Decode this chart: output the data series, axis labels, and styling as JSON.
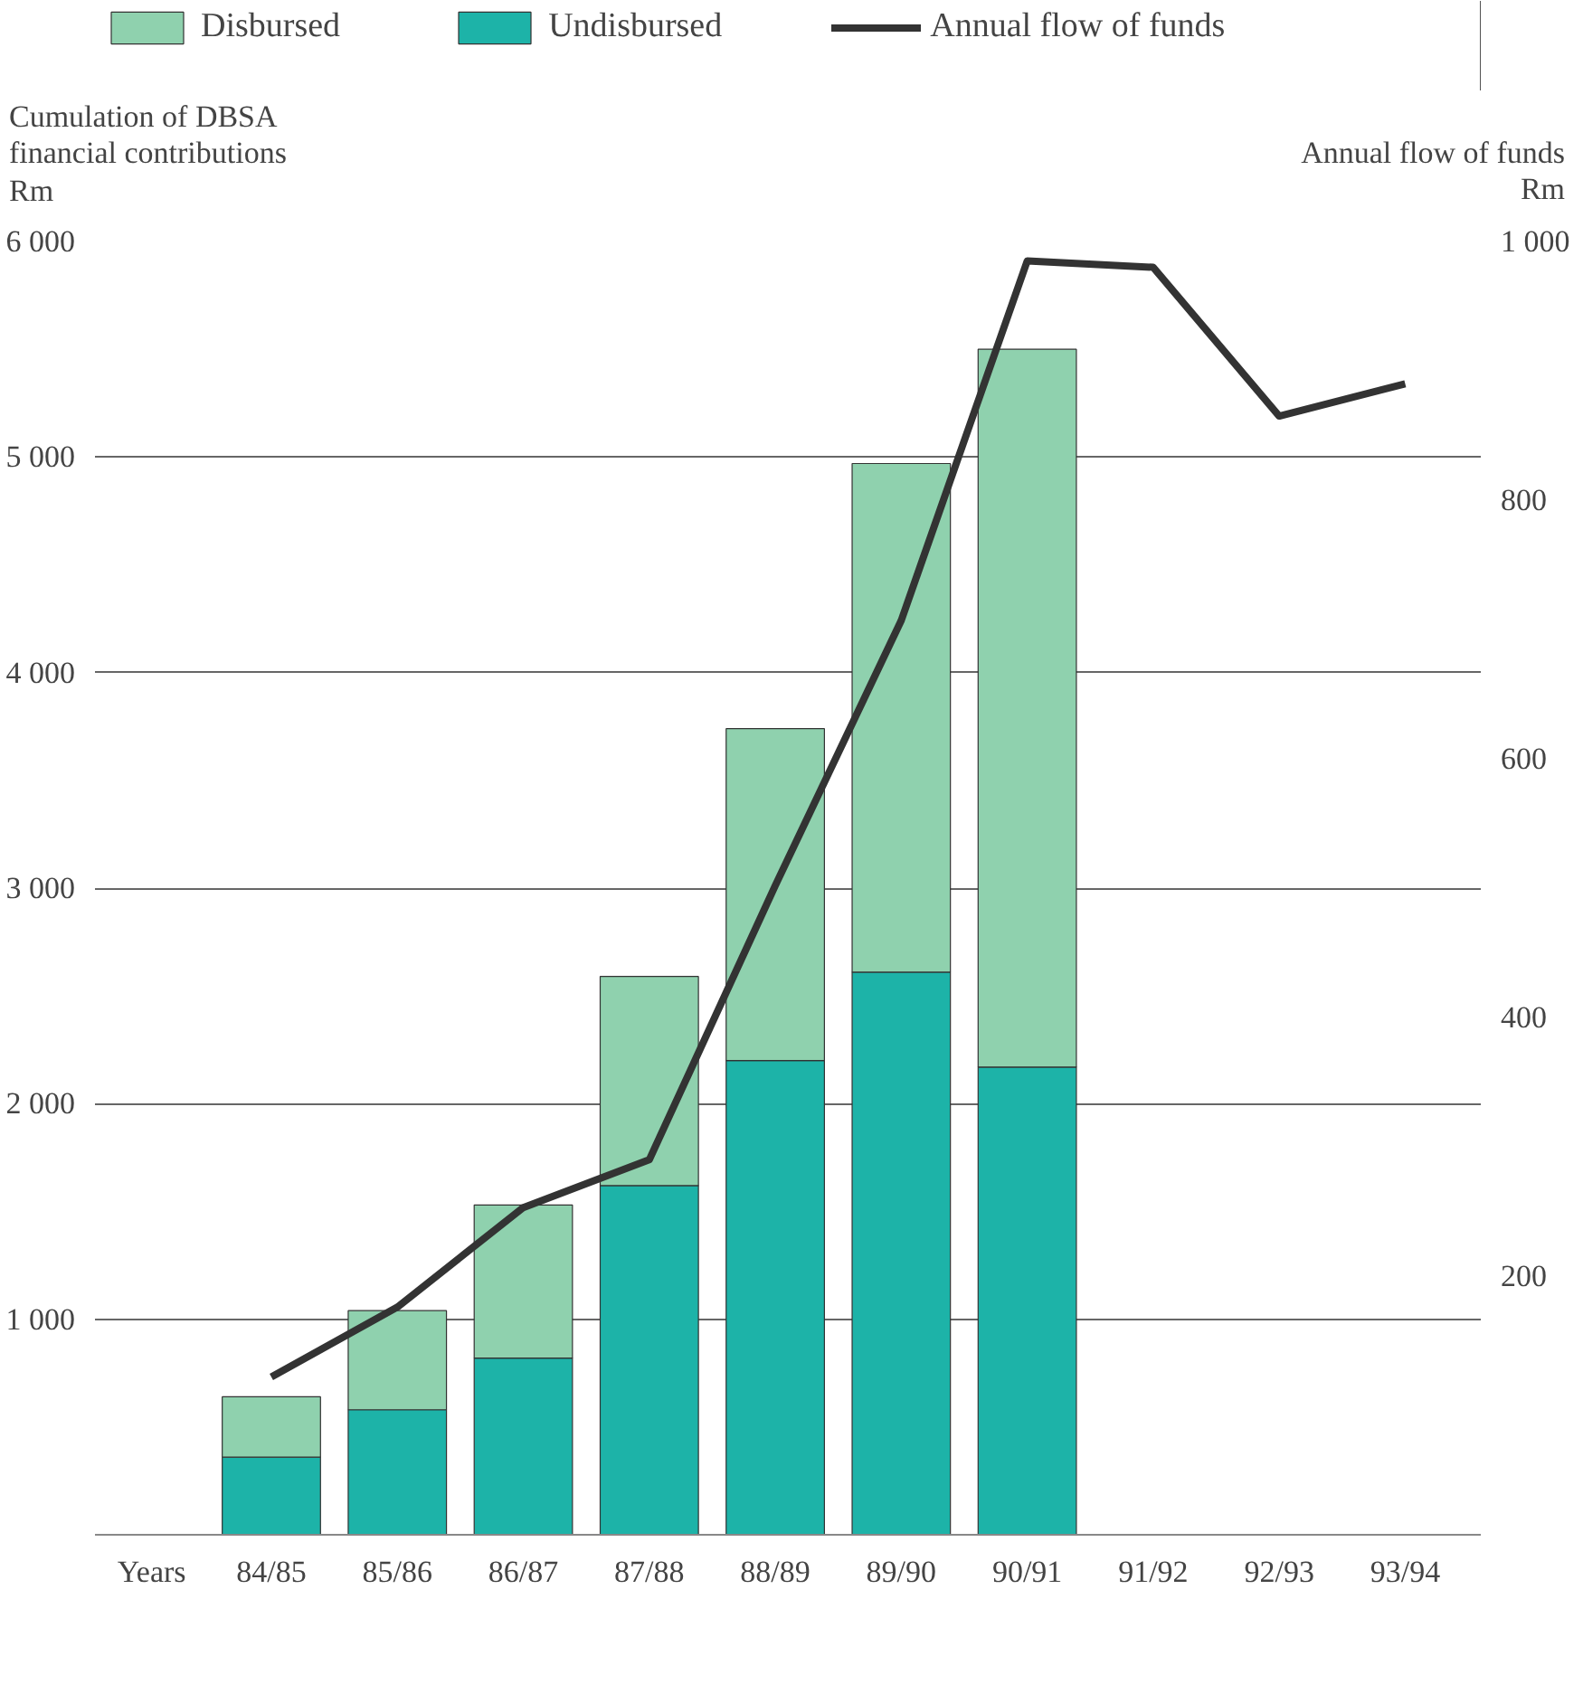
{
  "chart_data": {
    "type": "bar",
    "stacked": true,
    "categories": [
      "84/85",
      "85/86",
      "86/87",
      "87/88",
      "88/89",
      "89/90",
      "90/91",
      "91/92",
      "92/93",
      "93/94"
    ],
    "series": [
      {
        "name": "Undisbursed",
        "color": "#1db3a8",
        "values": [
          360,
          580,
          820,
          1620,
          2200,
          2610,
          2170,
          null,
          null,
          null
        ]
      },
      {
        "name": "Disbursed",
        "color": "#8fd1ae",
        "values": [
          280,
          460,
          710,
          970,
          1540,
          2360,
          3330,
          null,
          null,
          null
        ]
      },
      {
        "name": "Annual flow of funds",
        "type": "line",
        "axis": "y2",
        "color": "#333333",
        "values": [
          122,
          176,
          253,
          290,
          502,
          707,
          985,
          980,
          865,
          890
        ]
      }
    ],
    "xlabel": "Years",
    "ylabel": "Cumulation of DBSA\nfinancial contributions\nRm",
    "y2label": "Annual flow of funds\nRm",
    "ylim": [
      0,
      6000
    ],
    "yticks": [
      {
        "value": 1000,
        "label": "1 000"
      },
      {
        "value": 2000,
        "label": "2 000"
      },
      {
        "value": 3000,
        "label": "3 000"
      },
      {
        "value": 4000,
        "label": "4 000"
      },
      {
        "value": 5000,
        "label": "5 000"
      },
      {
        "value": 6000,
        "label": "6 000"
      }
    ],
    "y2lim": [
      0,
      1000
    ],
    "y2ticks": [
      200,
      400,
      600,
      800,
      {
        "value": 1000,
        "label": "1 000"
      }
    ],
    "grid": "y",
    "legend": "top",
    "line_style": "solid",
    "marker": "none"
  }
}
